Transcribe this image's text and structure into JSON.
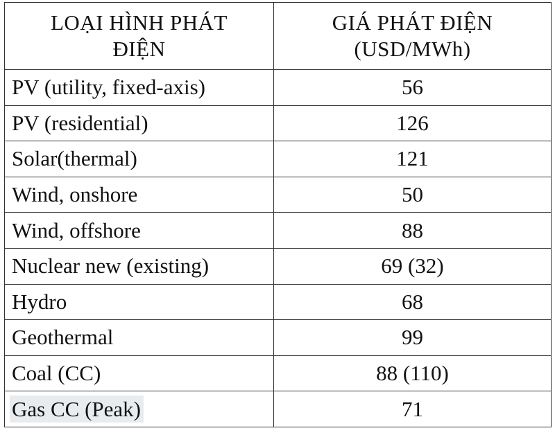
{
  "table": {
    "headers": [
      [
        "LOẠI HÌNH PHÁT",
        "ĐIỆN"
      ],
      [
        "GIÁ PHÁT ĐIỆN",
        "(USD/MWh)"
      ]
    ],
    "rows": [
      [
        "PV (utility, fixed-axis)",
        "56"
      ],
      [
        "PV (residential)",
        "126"
      ],
      [
        "Solar(thermal)",
        "121"
      ],
      [
        "Wind, onshore",
        "50"
      ],
      [
        "Wind, offshore",
        "88"
      ],
      [
        "Nuclear new (existing)",
        "69 (32)"
      ],
      [
        "Hydro",
        "68"
      ],
      [
        "Geothermal",
        "99"
      ],
      [
        "Coal (CC)",
        "88 (110)"
      ],
      [
        "Gas CC (Peak)",
        "71"
      ]
    ]
  }
}
